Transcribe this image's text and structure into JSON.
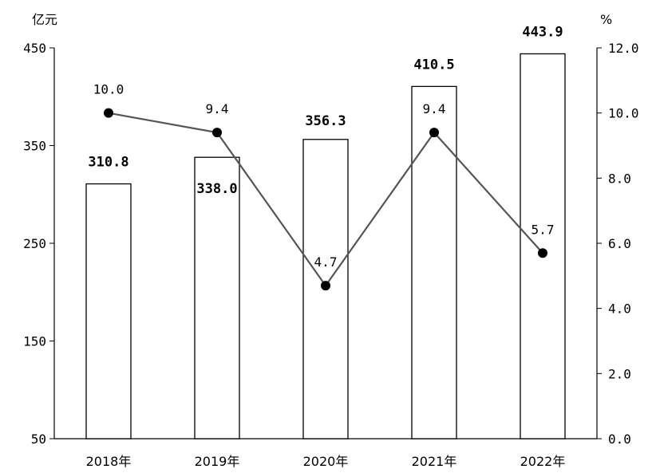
{
  "chart_data": {
    "type": "bar",
    "categories": [
      "2018年",
      "2019年",
      "2020年",
      "2021年",
      "2022年"
    ],
    "series": [
      {
        "type": "bar",
        "axis": "left",
        "values": [
          310.8,
          338.0,
          356.3,
          410.5,
          443.9
        ],
        "labels": [
          "310.8",
          "338.0",
          "356.3",
          "410.5",
          "443.9"
        ]
      },
      {
        "type": "line",
        "axis": "right",
        "values": [
          10.0,
          9.4,
          4.7,
          9.4,
          5.7
        ],
        "labels": [
          "10.0",
          "9.4",
          "4.7",
          "9.4",
          "5.7"
        ]
      }
    ],
    "left_axis": {
      "unit": "亿元",
      "ylim": [
        50,
        450
      ],
      "ticks": [
        "50",
        "150",
        "250",
        "350",
        "450"
      ]
    },
    "right_axis": {
      "unit": "%",
      "ylim": [
        0,
        12
      ],
      "ticks": [
        "0.0",
        "2.0",
        "4.0",
        "6.0",
        "8.0",
        "10.0",
        "12.0"
      ]
    },
    "grid": false,
    "legend": "none",
    "colors": {
      "bar_fill": "#ffffff",
      "bar_stroke": "#000000",
      "line": "#555555",
      "marker": "#000000"
    }
  }
}
